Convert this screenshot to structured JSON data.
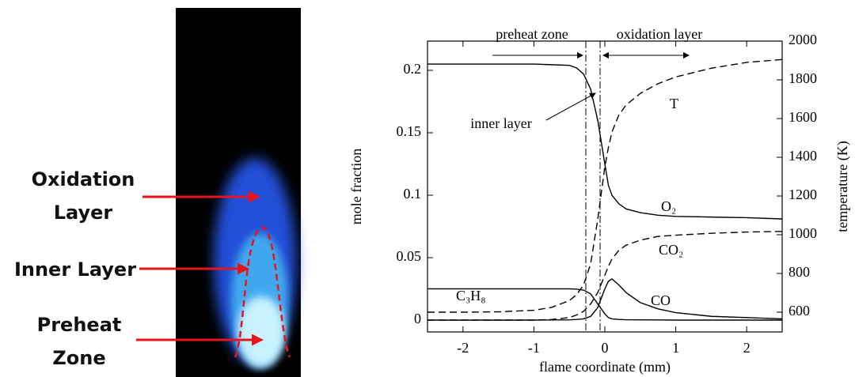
{
  "figure": {
    "photo_labels": [
      "Oxidation Layer",
      "Inner Layer",
      "Preheat Zone"
    ]
  },
  "chart_data": {
    "type": "line",
    "xlabel": "flame coordinate (mm)",
    "ylabel": "mole fraction",
    "y2label": "temperature (K)",
    "annotations": [
      "preheat zone",
      "oxidation layer",
      "inner layer"
    ],
    "x": [
      -2.5,
      -2,
      -1.5,
      -1,
      -0.75,
      -0.5,
      -0.4,
      -0.3,
      -0.2,
      -0.1,
      0,
      0.05,
      0.1,
      0.2,
      0.3,
      0.5,
      0.75,
      1,
      1.5,
      2,
      2.5
    ],
    "xlim": [
      -2.5,
      2.5
    ],
    "xticks": [
      -2,
      -1,
      0,
      1,
      2
    ],
    "ylim": [
      -0.0095,
      0.2234
    ],
    "yticks": [
      0,
      0.05,
      0.1,
      0.15,
      0.2
    ],
    "y2lim": [
      498,
      2000
    ],
    "y2ticks": [
      600,
      800,
      1000,
      1200,
      1400,
      1600,
      1800,
      2000
    ],
    "series": [
      {
        "name": "O₂",
        "color": "#000000",
        "linestyle": "solid",
        "values": [
          0.205,
          0.205,
          0.205,
          0.205,
          0.2045,
          0.204,
          0.202,
          0.197,
          0.185,
          0.16,
          0.125,
          0.108,
          0.1,
          0.093,
          0.089,
          0.086,
          0.084,
          0.083,
          0.0825,
          0.082,
          0.081
        ]
      },
      {
        "name": "C₃H₈",
        "color": "#000000",
        "linestyle": "solid",
        "values": [
          0.025,
          0.025,
          0.025,
          0.025,
          0.025,
          0.025,
          0.0248,
          0.024,
          0.021,
          0.013,
          0.005,
          0.002,
          0.001,
          0.0005,
          0.0003,
          0.0002,
          0.0001,
          0,
          0,
          0,
          0
        ]
      },
      {
        "name": "CO",
        "color": "#000000",
        "linestyle": "solid",
        "values": [
          0,
          0,
          0,
          0,
          0.0001,
          0.0002,
          0.0005,
          0.001,
          0.003,
          0.01,
          0.025,
          0.031,
          0.033,
          0.028,
          0.022,
          0.014,
          0.009,
          0.006,
          0.003,
          0.002,
          0.001
        ]
      },
      {
        "name": "CO₂",
        "color": "#000000",
        "linestyle": "dashed",
        "values": [
          0,
          0,
          0,
          0,
          0.0005,
          0.002,
          0.004,
          0.007,
          0.013,
          0.022,
          0.036,
          0.043,
          0.049,
          0.056,
          0.06,
          0.064,
          0.067,
          0.068,
          0.0695,
          0.0705,
          0.071
        ]
      },
      {
        "name": "T",
        "color": "#000000",
        "linestyle": "dashed",
        "axis": "y2",
        "values": [
          600,
          600,
          602,
          610,
          625,
          660,
          690,
          740,
          850,
          1080,
          1350,
          1450,
          1530,
          1620,
          1670,
          1730,
          1780,
          1815,
          1860,
          1890,
          1905
        ]
      }
    ]
  }
}
